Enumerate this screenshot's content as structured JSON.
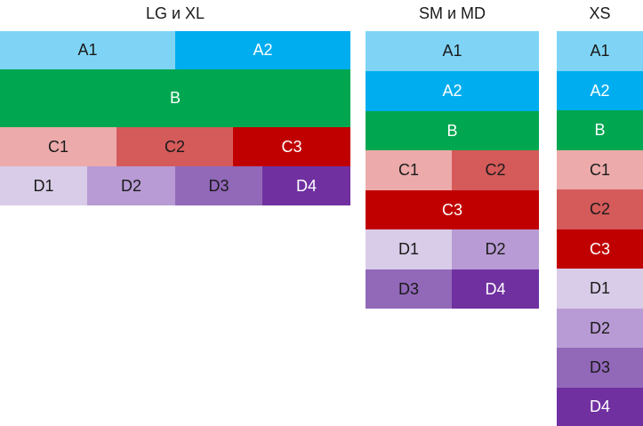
{
  "colors": {
    "a1": "#7fd4f5",
    "a2": "#00adef",
    "b": "#00a650",
    "c1": "#edaaaa",
    "c2": "#d55a5a",
    "c3": "#c00000",
    "d1": "#d9cce8",
    "d2": "#b89bd4",
    "d3": "#9268b9",
    "d4": "#7030a0",
    "dark_text": "#1a1a1a",
    "light_text": "#ffffff"
  },
  "panels": {
    "lg_xl": {
      "title": "LG и XL",
      "cells": [
        {
          "label": "A1",
          "color": "a1",
          "text": "dark"
        },
        {
          "label": "A2",
          "color": "a2",
          "text": "light"
        },
        {
          "label": "B",
          "color": "b",
          "text": "light"
        },
        {
          "label": "C1",
          "color": "c1",
          "text": "dark"
        },
        {
          "label": "C2",
          "color": "c2",
          "text": "dark"
        },
        {
          "label": "C3",
          "color": "c3",
          "text": "light"
        },
        {
          "label": "D1",
          "color": "d1",
          "text": "dark"
        },
        {
          "label": "D2",
          "color": "d2",
          "text": "dark"
        },
        {
          "label": "D3",
          "color": "d3",
          "text": "dark"
        },
        {
          "label": "D4",
          "color": "d4",
          "text": "light"
        }
      ]
    },
    "sm_md": {
      "title": "SM и MD",
      "cells": [
        {
          "label": "A1",
          "color": "a1",
          "text": "dark"
        },
        {
          "label": "A2",
          "color": "a2",
          "text": "light"
        },
        {
          "label": "B",
          "color": "b",
          "text": "light"
        },
        {
          "label": "C1",
          "color": "c1",
          "text": "dark"
        },
        {
          "label": "C2",
          "color": "c2",
          "text": "dark"
        },
        {
          "label": "C3",
          "color": "c3",
          "text": "light"
        },
        {
          "label": "D1",
          "color": "d1",
          "text": "dark"
        },
        {
          "label": "D2",
          "color": "d2",
          "text": "dark"
        },
        {
          "label": "D3",
          "color": "d3",
          "text": "dark"
        },
        {
          "label": "D4",
          "color": "d4",
          "text": "light"
        }
      ]
    },
    "xs": {
      "title": "XS",
      "cells": [
        {
          "label": "A1",
          "color": "a1",
          "text": "dark"
        },
        {
          "label": "A2",
          "color": "a2",
          "text": "light"
        },
        {
          "label": "B",
          "color": "b",
          "text": "light"
        },
        {
          "label": "C1",
          "color": "c1",
          "text": "dark"
        },
        {
          "label": "C2",
          "color": "c2",
          "text": "dark"
        },
        {
          "label": "C3",
          "color": "c3",
          "text": "light"
        },
        {
          "label": "D1",
          "color": "d1",
          "text": "dark"
        },
        {
          "label": "D2",
          "color": "d2",
          "text": "dark"
        },
        {
          "label": "D3",
          "color": "d3",
          "text": "dark"
        },
        {
          "label": "D4",
          "color": "d4",
          "text": "light"
        }
      ]
    }
  }
}
